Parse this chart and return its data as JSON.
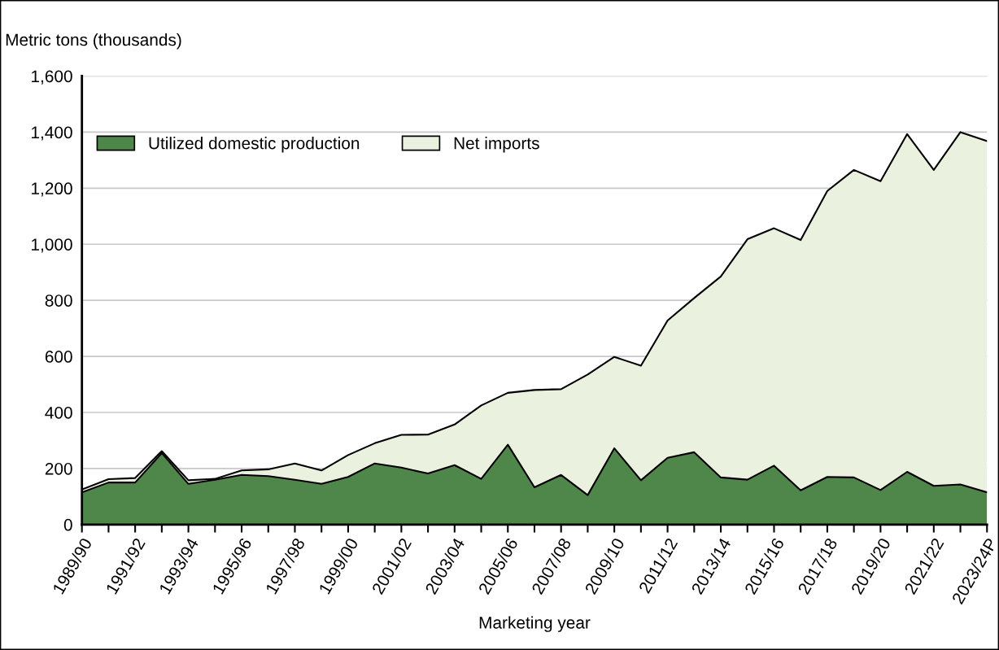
{
  "chart_data": {
    "type": "area",
    "stacked": true,
    "ylabel": "Metric tons (thousands)",
    "xlabel": "Marketing year",
    "categories": [
      "1989/90",
      null,
      "1991/92",
      null,
      "1993/94",
      null,
      "1995/96",
      null,
      "1997/98",
      null,
      "1999/00",
      null,
      "2001/02",
      null,
      "2003/04",
      null,
      "2005/06",
      null,
      "2007/08",
      null,
      "2009/10",
      null,
      "2011/12",
      null,
      "2013/14",
      null,
      "2015/16",
      null,
      "2017/18",
      null,
      "2019/20",
      null,
      "2021/22",
      null,
      "2023/24P"
    ],
    "series": [
      {
        "name": "Utilized domestic production",
        "color": "#4f874b",
        "values": [
          115,
          150,
          150,
          255,
          145,
          160,
          177,
          173,
          160,
          145,
          170,
          218,
          203,
          182,
          212,
          163,
          285,
          133,
          177,
          105,
          272,
          158,
          238,
          258,
          168,
          160,
          210,
          122,
          170,
          168,
          123,
          188,
          138,
          143,
          115
        ]
      },
      {
        "name": "Net imports",
        "color": "#eaf2df",
        "values": [
          10,
          12,
          16,
          7,
          13,
          3,
          16,
          24,
          58,
          48,
          78,
          72,
          117,
          139,
          145,
          262,
          185,
          347,
          306,
          430,
          326,
          409,
          490,
          550,
          717,
          858,
          847,
          893,
          1020,
          1097,
          1102,
          1205,
          1127,
          1257,
          1253
        ]
      }
    ],
    "ylim": [
      0,
      1600
    ],
    "yticks": [
      0,
      {
        "value": 200,
        "label": "200"
      },
      {
        "value": 400,
        "label": "400"
      },
      {
        "value": 600,
        "label": "600"
      },
      {
        "value": 800,
        "label": "800"
      },
      {
        "value": 1000,
        "label": "1,000"
      },
      {
        "value": 1200,
        "label": "1,200"
      },
      {
        "value": 1400,
        "label": "1,400"
      },
      {
        "value": 1600,
        "label": "1,600"
      }
    ],
    "grid": "y",
    "legend": "top left"
  }
}
